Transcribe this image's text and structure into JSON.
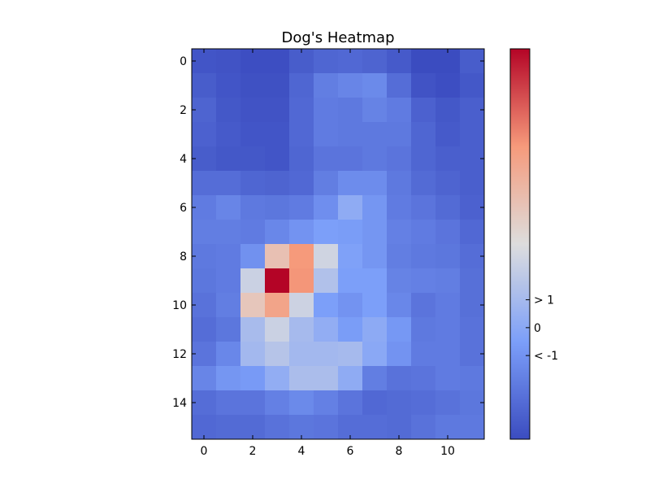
{
  "chart_data": {
    "type": "heatmap",
    "title": "Dog's Heatmap",
    "xlabel": "",
    "ylabel": "",
    "colormap": "coolwarm",
    "x_ticks": [
      0,
      2,
      4,
      6,
      8,
      10
    ],
    "y_ticks": [
      0,
      2,
      4,
      6,
      8,
      10,
      12,
      14
    ],
    "vmin": -4,
    "vmax": 10,
    "colorbar_labels": [
      {
        "label": "> 1",
        "value": 1
      },
      {
        "label": "0",
        "value": 0
      },
      {
        "label": "< -1",
        "value": -1
      }
    ],
    "values": [
      [
        -3.6,
        -3.7,
        -3.9,
        -3.9,
        -3.3,
        -2.9,
        -2.8,
        -3.0,
        -3.4,
        -4.0,
        -4.0,
        -3.3
      ],
      [
        -3.3,
        -3.6,
        -3.8,
        -3.8,
        -2.9,
        -1.9,
        -1.6,
        -1.4,
        -2.6,
        -3.7,
        -3.9,
        -3.5
      ],
      [
        -3.0,
        -3.5,
        -3.7,
        -3.7,
        -2.8,
        -2.0,
        -2.1,
        -1.7,
        -2.0,
        -3.1,
        -3.5,
        -3.2
      ],
      [
        -3.1,
        -3.4,
        -3.6,
        -3.6,
        -2.8,
        -2.0,
        -2.1,
        -2.1,
        -2.1,
        -2.9,
        -3.4,
        -3.2
      ],
      [
        -3.3,
        -3.5,
        -3.5,
        -3.6,
        -2.9,
        -2.3,
        -2.3,
        -2.1,
        -2.3,
        -2.9,
        -3.2,
        -3.2
      ],
      [
        -2.6,
        -2.6,
        -2.9,
        -3.0,
        -2.8,
        -1.9,
        -1.3,
        -1.3,
        -2.1,
        -2.7,
        -3.0,
        -3.2
      ],
      [
        -2.0,
        -1.6,
        -2.1,
        -2.2,
        -2.0,
        -1.2,
        0.2,
        -0.9,
        -2.0,
        -2.3,
        -2.7,
        -3.1
      ],
      [
        -1.9,
        -1.9,
        -2.0,
        -1.5,
        -1.0,
        -0.5,
        -0.6,
        -0.9,
        -1.8,
        -2.0,
        -2.3,
        -2.8
      ],
      [
        -2.1,
        -2.0,
        -1.1,
        4.5,
        6.5,
        2.5,
        -0.4,
        -0.9,
        -1.9,
        -2.1,
        -2.2,
        -2.6
      ],
      [
        -2.2,
        -2.0,
        2.3,
        10.0,
        6.6,
        1.4,
        -0.5,
        -0.5,
        -1.7,
        -1.8,
        -1.9,
        -2.5
      ],
      [
        -2.4,
        -1.9,
        4.2,
        6.0,
        2.4,
        -0.5,
        -1.0,
        -0.5,
        -1.5,
        -2.3,
        -2.0,
        -2.5
      ],
      [
        -2.6,
        -2.2,
        1.1,
        2.3,
        1.0,
        0.3,
        -0.6,
        0.1,
        -0.8,
        -2.1,
        -2.0,
        -2.4
      ],
      [
        -2.3,
        -1.5,
        0.9,
        1.6,
        0.9,
        0.9,
        1.0,
        0.0,
        -1.0,
        -2.0,
        -2.0,
        -2.4
      ],
      [
        -1.6,
        -0.9,
        -0.7,
        0.3,
        1.2,
        1.2,
        0.2,
        -1.9,
        -2.4,
        -2.3,
        -2.0,
        -2.1
      ],
      [
        -2.6,
        -2.3,
        -2.3,
        -1.8,
        -1.4,
        -1.8,
        -2.3,
        -2.8,
        -2.7,
        -2.6,
        -2.4,
        -2.2
      ],
      [
        -2.8,
        -2.7,
        -2.7,
        -2.4,
        -2.2,
        -2.3,
        -2.6,
        -2.6,
        -2.7,
        -2.4,
        -2.1,
        -2.1
      ]
    ]
  }
}
